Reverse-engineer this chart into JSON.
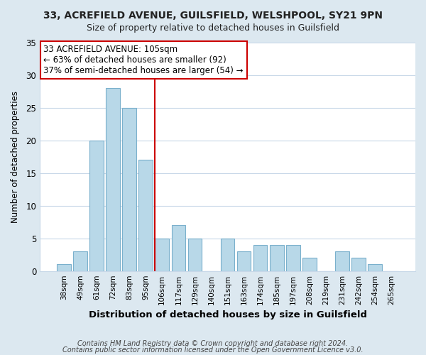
{
  "title": "33, ACREFIELD AVENUE, GUILSFIELD, WELSHPOOL, SY21 9PN",
  "subtitle": "Size of property relative to detached houses in Guilsfield",
  "xlabel": "Distribution of detached houses by size in Guilsfield",
  "ylabel": "Number of detached properties",
  "footnote1": "Contains HM Land Registry data © Crown copyright and database right 2024.",
  "footnote2": "Contains public sector information licensed under the Open Government Licence v3.0.",
  "bar_labels": [
    "38sqm",
    "49sqm",
    "61sqm",
    "72sqm",
    "83sqm",
    "95sqm",
    "106sqm",
    "117sqm",
    "129sqm",
    "140sqm",
    "151sqm",
    "163sqm",
    "174sqm",
    "185sqm",
    "197sqm",
    "208sqm",
    "219sqm",
    "231sqm",
    "242sqm",
    "254sqm",
    "265sqm"
  ],
  "bar_values": [
    1,
    3,
    20,
    28,
    25,
    17,
    5,
    7,
    5,
    0,
    5,
    3,
    4,
    4,
    4,
    2,
    0,
    3,
    2,
    1,
    0
  ],
  "bar_color": "#b8d8e8",
  "bar_edge_color": "#7ab0cc",
  "vline_index": 6,
  "vline_color": "#cc0000",
  "annotation_title": "33 ACREFIELD AVENUE: 105sqm",
  "annotation_line1": "← 63% of detached houses are smaller (92)",
  "annotation_line2": "37% of semi-detached houses are larger (54) →",
  "annotation_box_edgecolor": "#cc0000",
  "annotation_box_facecolor": "#ffffff",
  "ylim": [
    0,
    35
  ],
  "yticks": [
    0,
    5,
    10,
    15,
    20,
    25,
    30,
    35
  ],
  "figure_bg": "#dce8f0",
  "plot_bg": "#ffffff",
  "grid_color": "#c8d8e8",
  "title_fontsize": 10,
  "subtitle_fontsize": 9
}
